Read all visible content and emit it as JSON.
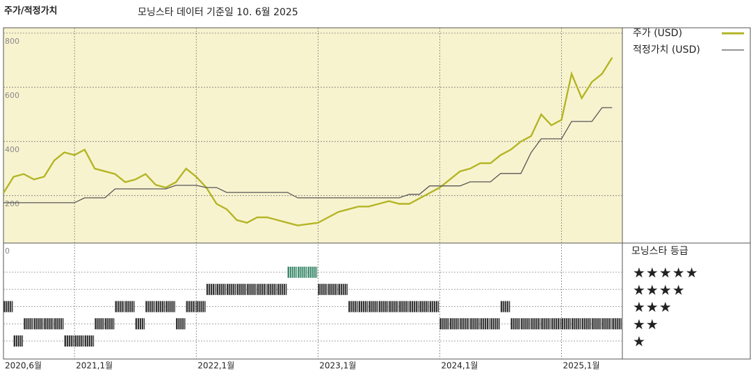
{
  "chart_data": {
    "type": "line",
    "title": "주가/적정가치",
    "subtitle": "모닝스타 데이터 기준일 10. 6월 2025",
    "x": [
      "2020-06",
      "2020-07",
      "2020-08",
      "2020-09",
      "2020-10",
      "2020-11",
      "2020-12",
      "2021-01",
      "2021-02",
      "2021-03",
      "2021-04",
      "2021-05",
      "2021-06",
      "2021-07",
      "2021-08",
      "2021-09",
      "2021-10",
      "2021-11",
      "2021-12",
      "2022-01",
      "2022-02",
      "2022-03",
      "2022-04",
      "2022-05",
      "2022-06",
      "2022-07",
      "2022-08",
      "2022-09",
      "2022-10",
      "2022-11",
      "2022-12",
      "2023-01",
      "2023-02",
      "2023-03",
      "2023-04",
      "2023-05",
      "2023-06",
      "2023-07",
      "2023-08",
      "2023-09",
      "2023-10",
      "2023-11",
      "2023-12",
      "2024-01",
      "2024-02",
      "2024-03",
      "2024-04",
      "2024-05",
      "2024-06",
      "2024-07",
      "2024-08",
      "2024-09",
      "2024-10",
      "2024-11",
      "2024-12",
      "2025-01",
      "2025-02",
      "2025-03",
      "2025-04",
      "2025-05",
      "2025-06"
    ],
    "series": [
      {
        "name": "주가 (USD)",
        "color": "#b3b525",
        "values": [
          210,
          270,
          280,
          260,
          270,
          330,
          360,
          350,
          370,
          300,
          290,
          280,
          250,
          260,
          280,
          240,
          230,
          250,
          300,
          270,
          230,
          170,
          150,
          110,
          100,
          120,
          120,
          110,
          100,
          90,
          95,
          100,
          120,
          140,
          150,
          160,
          160,
          170,
          180,
          170,
          170,
          190,
          210,
          230,
          260,
          290,
          300,
          320,
          320,
          350,
          370,
          400,
          420,
          500,
          460,
          480,
          650,
          560,
          620,
          650,
          710
        ]
      },
      {
        "name": "적정가치 (USD)",
        "color": "#555555",
        "values": [
          174,
          174,
          174,
          174,
          174,
          174,
          174,
          174,
          192,
          192,
          192,
          225,
          225,
          225,
          225,
          225,
          225,
          238,
          238,
          238,
          230,
          230,
          212,
          212,
          212,
          212,
          212,
          212,
          212,
          192,
          192,
          192,
          192,
          192,
          192,
          192,
          192,
          192,
          192,
          192,
          205,
          205,
          236,
          236,
          236,
          236,
          251,
          251,
          251,
          282,
          282,
          282,
          359,
          410,
          410,
          410,
          474,
          474,
          474,
          525,
          525
        ]
      }
    ],
    "xlim": [
      "2020-06",
      "2025-07"
    ],
    "xticks": [
      {
        "value": "2020-06",
        "label": "2020,6월"
      },
      {
        "value": "2021-01",
        "label": "2021,1월"
      },
      {
        "value": "2022-01",
        "label": "2022,1월"
      },
      {
        "value": "2023-01",
        "label": "2023,1월"
      },
      {
        "value": "2024-01",
        "label": "2024,1월"
      },
      {
        "value": "2025-01",
        "label": "2025,1월"
      }
    ],
    "ylim": [
      25,
      820
    ],
    "yticks": [
      200,
      400,
      600,
      800
    ],
    "grid": true,
    "ratings": {
      "title": "모닝스타 등급",
      "axis_label": "0",
      "color": "#333333",
      "top_color": "#3f8a6e",
      "levels": [
        {
          "value": 5,
          "label": "★★★★★"
        },
        {
          "value": 4,
          "label": "★★★★"
        },
        {
          "value": 3,
          "label": "★★★"
        },
        {
          "value": 2,
          "label": "★★"
        },
        {
          "value": 1,
          "label": "★"
        }
      ],
      "values": [
        3,
        1,
        2,
        2,
        2,
        2,
        1,
        1,
        1,
        2,
        2,
        3,
        3,
        2,
        3,
        3,
        3,
        2,
        3,
        3,
        4,
        4,
        4,
        4,
        4,
        4,
        4,
        4,
        5,
        5,
        5,
        4,
        4,
        4,
        3,
        3,
        3,
        3,
        3,
        3,
        3,
        3,
        3,
        2,
        2,
        2,
        2,
        2,
        2,
        3,
        2,
        2,
        2,
        2,
        2,
        2,
        2,
        2,
        2,
        2,
        2
      ]
    }
  }
}
